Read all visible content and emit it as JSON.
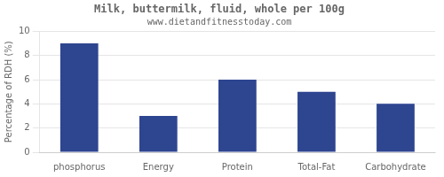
{
  "chart_data": {
    "type": "bar",
    "title": "Milk, buttermilk, fluid, whole per 100g",
    "subtitle": "www.dietandfitnesstoday.com",
    "categories": [
      "phosphorus",
      "Energy",
      "Protein",
      "Total-Fat",
      "Carbohydrate"
    ],
    "values": [
      9,
      3,
      6,
      5,
      4
    ],
    "color": "#2e4590",
    "ylabel": "Percentage of RDH (%)",
    "ylim": [
      0,
      10
    ],
    "yticks": [
      0,
      2,
      4,
      6,
      8,
      10
    ],
    "grid": true
  }
}
